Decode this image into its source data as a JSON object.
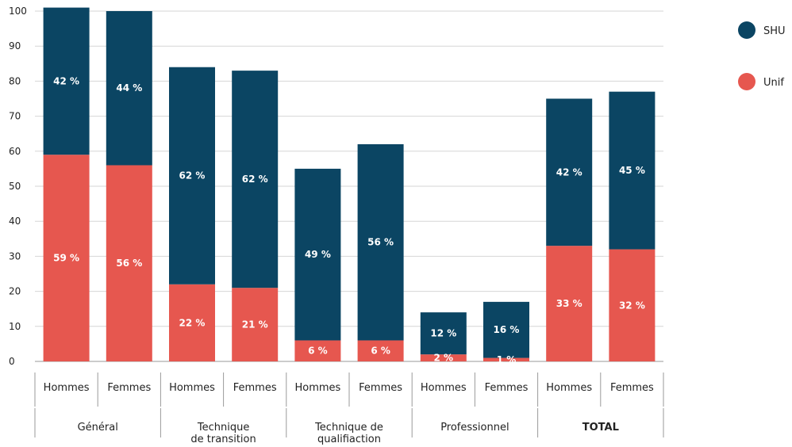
{
  "chart_data": {
    "type": "bar",
    "stacked": true,
    "ylim": [
      0,
      100
    ],
    "yticks": [
      0,
      10,
      20,
      30,
      40,
      50,
      60,
      70,
      80,
      90,
      100
    ],
    "grid": "horizontal",
    "legend_position": "top-right",
    "colors": {
      "SHU": "#0b4563",
      "Unif": "#e6574f"
    },
    "series": [
      {
        "name": "Unif",
        "key": "Unif"
      },
      {
        "name": "SHU",
        "key": "SHU"
      }
    ],
    "groups": [
      {
        "label": "Général",
        "bold": false
      },
      {
        "label": "Technique\nde transition",
        "bold": false
      },
      {
        "label": "Technique de\nqualifiaction",
        "bold": false
      },
      {
        "label": "Professionnel",
        "bold": false
      },
      {
        "label": "TOTAL",
        "bold": true
      }
    ],
    "bars": [
      {
        "group": 0,
        "category": "Hommes",
        "Unif": 59,
        "SHU": 42,
        "Unif_label": "59 %",
        "SHU_label": "42 %"
      },
      {
        "group": 0,
        "category": "Femmes",
        "Unif": 56,
        "SHU": 44,
        "Unif_label": "56 %",
        "SHU_label": "44 %"
      },
      {
        "group": 1,
        "category": "Hommes",
        "Unif": 22,
        "SHU": 62,
        "Unif_label": "22 %",
        "SHU_label": "62 %"
      },
      {
        "group": 1,
        "category": "Femmes",
        "Unif": 21,
        "SHU": 62,
        "Unif_label": "21 %",
        "SHU_label": "62 %"
      },
      {
        "group": 2,
        "category": "Hommes",
        "Unif": 6,
        "SHU": 49,
        "Unif_label": "6 %",
        "SHU_label": "49 %"
      },
      {
        "group": 2,
        "category": "Femmes",
        "Unif": 6,
        "SHU": 56,
        "Unif_label": "6 %",
        "SHU_label": "56 %"
      },
      {
        "group": 3,
        "category": "Hommes",
        "Unif": 2,
        "SHU": 12,
        "Unif_label": "2 %",
        "SHU_label": "12 %"
      },
      {
        "group": 3,
        "category": "Femmes",
        "Unif": 1,
        "SHU": 16,
        "Unif_label": "1 %",
        "SHU_label": "16 %"
      },
      {
        "group": 4,
        "category": "Hommes",
        "Unif": 33,
        "SHU": 42,
        "Unif_label": "33 %",
        "SHU_label": "42 %"
      },
      {
        "group": 4,
        "category": "Femmes",
        "Unif": 32,
        "SHU": 45,
        "Unif_label": "32 %",
        "SHU_label": "45 %"
      }
    ],
    "legend": [
      {
        "name": "SHU",
        "key": "SHU"
      },
      {
        "name": "Unif",
        "key": "Unif"
      }
    ]
  }
}
